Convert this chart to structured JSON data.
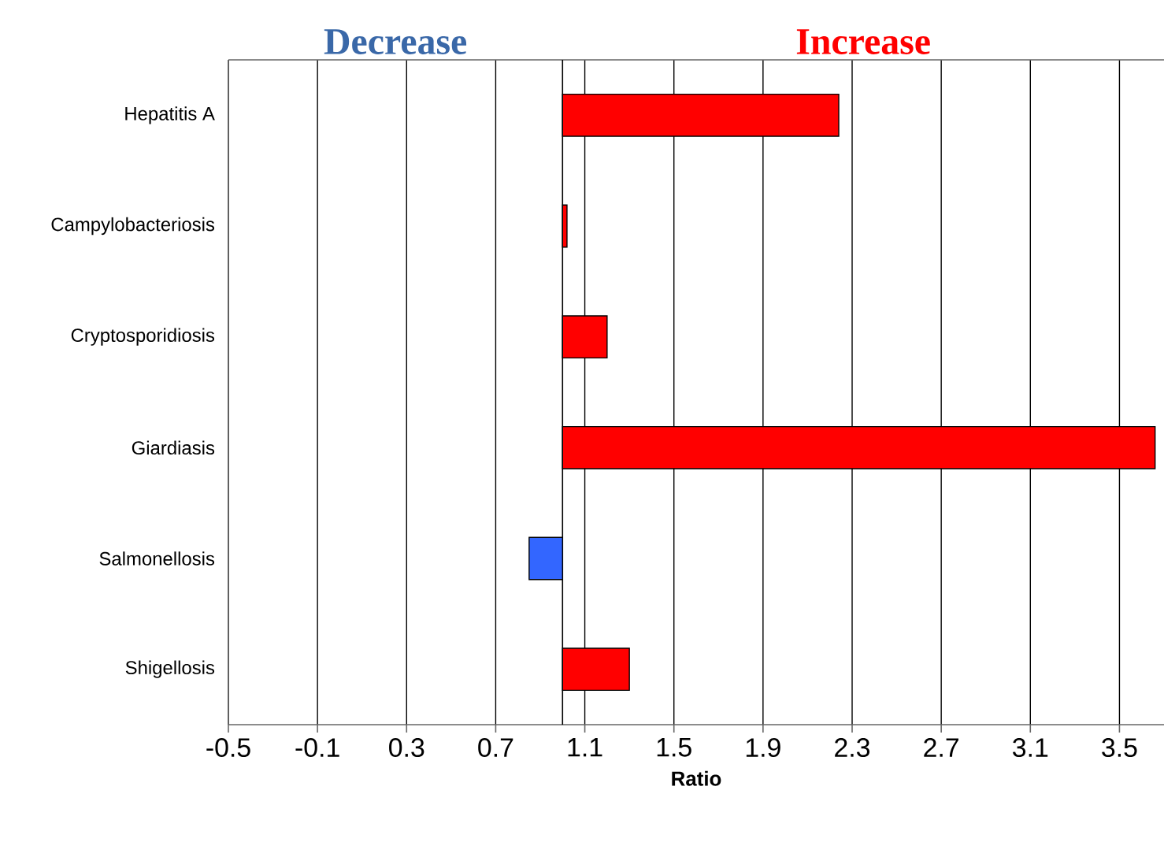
{
  "chart_data": {
    "type": "bar",
    "orientation": "horizontal",
    "xlabel": "Ratio",
    "categories": [
      "Hepatitis A",
      "Campylobacteriosis",
      "Cryptosporidiosis",
      "Giardiasis",
      "Salmonellosis",
      "Shigellosis"
    ],
    "base": [
      1,
      1,
      1,
      1,
      1,
      1
    ],
    "values": [
      1.24,
      0.02,
      0.2,
      2.66,
      -0.15,
      0.3
    ],
    "colors": [
      "#ff0000",
      "#ff0000",
      "#ff0000",
      "#ff0000",
      "#3366ff",
      "#ff0000"
    ],
    "xlim": [
      -0.5,
      3.7
    ],
    "xticks": [
      -0.5,
      -0.1,
      0.3,
      0.7,
      1.1,
      1.5,
      1.9,
      2.3,
      2.7,
      3.1,
      3.5
    ],
    "grid": "x",
    "ref_lines": [
      {
        "axis": "x",
        "value": 1
      }
    ],
    "annotations": [
      "Decrease",
      "Increase"
    ]
  }
}
